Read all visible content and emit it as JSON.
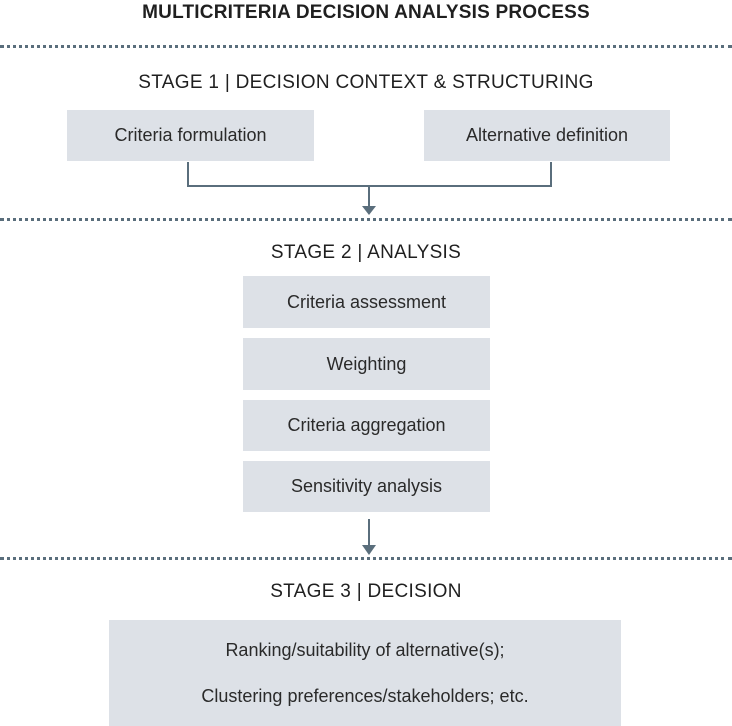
{
  "title": "MULTICRITERIA DECISION ANALYSIS PROCESS",
  "stage1": {
    "heading": "STAGE 1 | DECISION CONTEXT & STRUCTURING",
    "boxes": [
      "Criteria formulation",
      "Alternative definition"
    ]
  },
  "stage2": {
    "heading": "STAGE 2 | ANALYSIS",
    "boxes": [
      "Criteria assessment",
      "Weighting",
      "Criteria aggregation",
      "Sensitivity analysis"
    ]
  },
  "stage3": {
    "heading": "STAGE 3 | DECISION",
    "lines": [
      "Ranking/suitability of alternative(s);",
      "Clustering preferences/stakeholders; etc."
    ]
  },
  "colors": {
    "box_fill": "#dde1e7",
    "connector": "#5a6e7c",
    "text": "#1f1f1f"
  }
}
